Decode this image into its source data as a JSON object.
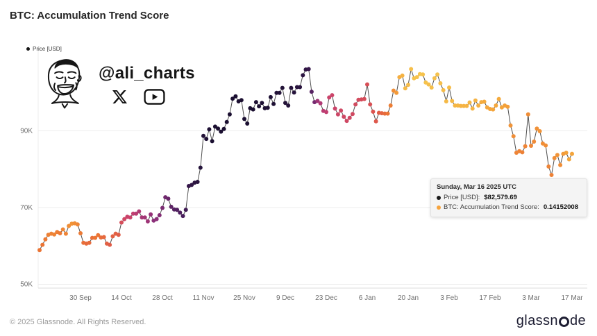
{
  "page": {
    "title": "BTC: Accumulation Trend Score",
    "footer_left": "© 2025 Glassnode. All Rights Reserved.",
    "brand": "glassnode",
    "brand_prefix": "glassn",
    "brand_suffix": "de"
  },
  "legend": {
    "label": "Price [USD]"
  },
  "watermark": {
    "handle": "@ali_charts",
    "icons": [
      "face-sketch-icon",
      "x-logo-icon",
      "youtube-icon"
    ]
  },
  "tooltip": {
    "title": "Sunday, Mar 16 2025 UTC",
    "rows": [
      {
        "label": "Price [USD]:",
        "value": "$82,579.69",
        "dot_color": "#1a1a1a"
      },
      {
        "label": "BTC: Accumulation Trend Score:",
        "value": "0.14152008",
        "dot_color": "#f6a33c"
      }
    ]
  },
  "chart_data": {
    "type": "scatter",
    "title": "BTC: Accumulation Trend Score",
    "ylabel": "Price [USD]",
    "xlabel": "",
    "grid": true,
    "legend_position": "top-left",
    "ylim": [
      49000,
      110000
    ],
    "y_ticks": [
      {
        "value": 50000,
        "label": "50K"
      },
      {
        "value": 70000,
        "label": "70K"
      },
      {
        "value": 90000,
        "label": "90K"
      }
    ],
    "x_ticks": [
      "30 Sep",
      "14 Oct",
      "28 Oct",
      "11 Nov",
      "25 Nov",
      "9 Dec",
      "23 Dec",
      "6 Jan",
      "20 Jan",
      "3 Feb",
      "17 Feb",
      "3 Mar",
      "17 Mar"
    ],
    "x_tick_day_indices": [
      14,
      28,
      42,
      56,
      70,
      84,
      98,
      112,
      126,
      140,
      154,
      168,
      182
    ],
    "color_scale": {
      "meaning": "dot color = accumulation trend score; 0 = yellow (distribution), 1 = dark navy (accumulation)",
      "stops": [
        [
          0.0,
          [
            247,
            209,
            84
          ]
        ],
        [
          0.15,
          [
            244,
            164,
            58
          ]
        ],
        [
          0.3,
          [
            235,
            116,
            52
          ]
        ],
        [
          0.45,
          [
            219,
            82,
            82
          ]
        ],
        [
          0.57,
          [
            198,
            64,
            112
          ]
        ],
        [
          0.7,
          [
            140,
            48,
            122
          ]
        ],
        [
          0.85,
          [
            72,
            30,
            92
          ]
        ],
        [
          1.0,
          [
            20,
            13,
            42
          ]
        ]
      ]
    },
    "line_color": "#4d4d4d",
    "point_format": [
      "date",
      "price_usd",
      "accumulation_trend_score"
    ],
    "points": [
      [
        "2024-09-16",
        58900,
        0.3
      ],
      [
        "2024-09-17",
        60300,
        0.3
      ],
      [
        "2024-09-18",
        61700,
        0.28
      ],
      [
        "2024-09-19",
        62900,
        0.26
      ],
      [
        "2024-09-20",
        63200,
        0.25
      ],
      [
        "2024-09-21",
        63000,
        0.25
      ],
      [
        "2024-09-22",
        63600,
        0.27
      ],
      [
        "2024-09-23",
        63300,
        0.28
      ],
      [
        "2024-09-24",
        64300,
        0.24
      ],
      [
        "2024-09-25",
        63200,
        0.25
      ],
      [
        "2024-09-26",
        65200,
        0.22
      ],
      [
        "2024-09-27",
        65800,
        0.2
      ],
      [
        "2024-09-28",
        65900,
        0.22
      ],
      [
        "2024-09-29",
        65600,
        0.24
      ],
      [
        "2024-09-30",
        63300,
        0.28
      ],
      [
        "2024-10-01",
        60800,
        0.32
      ],
      [
        "2024-10-02",
        60600,
        0.34
      ],
      [
        "2024-10-03",
        60800,
        0.34
      ],
      [
        "2024-10-04",
        62100,
        0.32
      ],
      [
        "2024-10-05",
        62100,
        0.3
      ],
      [
        "2024-10-06",
        62800,
        0.3
      ],
      [
        "2024-10-07",
        62200,
        0.33
      ],
      [
        "2024-10-08",
        62300,
        0.35
      ],
      [
        "2024-10-09",
        60600,
        0.38
      ],
      [
        "2024-10-10",
        60300,
        0.4
      ],
      [
        "2024-10-11",
        62500,
        0.38
      ],
      [
        "2024-10-12",
        63200,
        0.38
      ],
      [
        "2024-10-13",
        62900,
        0.4
      ],
      [
        "2024-10-14",
        66100,
        0.48
      ],
      [
        "2024-10-15",
        67000,
        0.52
      ],
      [
        "2024-10-16",
        67600,
        0.55
      ],
      [
        "2024-10-17",
        67400,
        0.55
      ],
      [
        "2024-10-18",
        68400,
        0.58
      ],
      [
        "2024-10-19",
        68400,
        0.6
      ],
      [
        "2024-10-20",
        69000,
        0.62
      ],
      [
        "2024-10-21",
        67400,
        0.64
      ],
      [
        "2024-10-22",
        67400,
        0.65
      ],
      [
        "2024-10-23",
        66400,
        0.66
      ],
      [
        "2024-10-24",
        68200,
        0.68
      ],
      [
        "2024-10-25",
        66600,
        0.7
      ],
      [
        "2024-10-26",
        67000,
        0.7
      ],
      [
        "2024-10-27",
        68000,
        0.72
      ],
      [
        "2024-10-28",
        69900,
        0.74
      ],
      [
        "2024-10-29",
        72700,
        0.76
      ],
      [
        "2024-10-30",
        72300,
        0.78
      ],
      [
        "2024-10-31",
        70200,
        0.8
      ],
      [
        "2024-11-01",
        69500,
        0.82
      ],
      [
        "2024-11-02",
        69400,
        0.83
      ],
      [
        "2024-11-03",
        68700,
        0.84
      ],
      [
        "2024-11-04",
        67800,
        0.85
      ],
      [
        "2024-11-05",
        69400,
        0.87
      ],
      [
        "2024-11-06",
        75600,
        0.9
      ],
      [
        "2024-11-07",
        75900,
        0.92
      ],
      [
        "2024-11-08",
        76500,
        0.93
      ],
      [
        "2024-11-09",
        76700,
        0.94
      ],
      [
        "2024-11-10",
        80400,
        0.95
      ],
      [
        "2024-11-11",
        88700,
        0.96
      ],
      [
        "2024-11-12",
        87900,
        0.97
      ],
      [
        "2024-11-13",
        90400,
        0.97
      ],
      [
        "2024-11-14",
        87300,
        0.98
      ],
      [
        "2024-11-15",
        91100,
        0.98
      ],
      [
        "2024-11-16",
        90600,
        0.98
      ],
      [
        "2024-11-17",
        89800,
        0.98
      ],
      [
        "2024-11-18",
        90500,
        0.98
      ],
      [
        "2024-11-19",
        92300,
        0.98
      ],
      [
        "2024-11-20",
        94300,
        0.98
      ],
      [
        "2024-11-21",
        98400,
        0.98
      ],
      [
        "2024-11-22",
        99000,
        0.98
      ],
      [
        "2024-11-23",
        97700,
        0.98
      ],
      [
        "2024-11-24",
        98000,
        0.98
      ],
      [
        "2024-11-25",
        93100,
        0.98
      ],
      [
        "2024-11-26",
        91900,
        0.98
      ],
      [
        "2024-11-27",
        95900,
        0.98
      ],
      [
        "2024-11-28",
        95600,
        0.98
      ],
      [
        "2024-11-29",
        97500,
        0.97
      ],
      [
        "2024-11-30",
        96400,
        0.97
      ],
      [
        "2024-12-01",
        97300,
        0.97
      ],
      [
        "2024-12-02",
        95900,
        0.97
      ],
      [
        "2024-12-03",
        96000,
        0.97
      ],
      [
        "2024-12-04",
        98800,
        0.97
      ],
      [
        "2024-12-05",
        97000,
        0.97
      ],
      [
        "2024-12-06",
        99900,
        0.96
      ],
      [
        "2024-12-07",
        99900,
        0.96
      ],
      [
        "2024-12-08",
        101200,
        0.96
      ],
      [
        "2024-12-09",
        97300,
        0.96
      ],
      [
        "2024-12-10",
        96600,
        0.95
      ],
      [
        "2024-12-11",
        101200,
        0.95
      ],
      [
        "2024-12-12",
        100000,
        0.95
      ],
      [
        "2024-12-13",
        101400,
        0.94
      ],
      [
        "2024-12-14",
        101400,
        0.94
      ],
      [
        "2024-12-15",
        104500,
        0.93
      ],
      [
        "2024-12-16",
        106000,
        0.92
      ],
      [
        "2024-12-17",
        106100,
        0.9
      ],
      [
        "2024-12-18",
        100200,
        0.82
      ],
      [
        "2024-12-19",
        97500,
        0.75
      ],
      [
        "2024-12-20",
        97800,
        0.66
      ],
      [
        "2024-12-21",
        97200,
        0.62
      ],
      [
        "2024-12-22",
        95200,
        0.6
      ],
      [
        "2024-12-23",
        94900,
        0.58
      ],
      [
        "2024-12-24",
        98700,
        0.55
      ],
      [
        "2024-12-25",
        99300,
        0.54
      ],
      [
        "2024-12-26",
        95800,
        0.54
      ],
      [
        "2024-12-27",
        94300,
        0.53
      ],
      [
        "2024-12-28",
        95300,
        0.52
      ],
      [
        "2024-12-29",
        93700,
        0.52
      ],
      [
        "2024-12-30",
        92600,
        0.52
      ],
      [
        "2024-12-31",
        93400,
        0.52
      ],
      [
        "2025-01-01",
        94400,
        0.51
      ],
      [
        "2025-01-02",
        96900,
        0.5
      ],
      [
        "2025-01-03",
        98100,
        0.5
      ],
      [
        "2025-01-04",
        98200,
        0.49
      ],
      [
        "2025-01-05",
        98300,
        0.48
      ],
      [
        "2025-01-06",
        102100,
        0.47
      ],
      [
        "2025-01-07",
        96900,
        0.46
      ],
      [
        "2025-01-08",
        95000,
        0.44
      ],
      [
        "2025-01-09",
        92500,
        0.42
      ],
      [
        "2025-01-10",
        94700,
        0.4
      ],
      [
        "2025-01-11",
        94600,
        0.37
      ],
      [
        "2025-01-12",
        94500,
        0.34
      ],
      [
        "2025-01-13",
        94500,
        0.3
      ],
      [
        "2025-01-14",
        96600,
        0.27
      ],
      [
        "2025-01-15",
        100500,
        0.22
      ],
      [
        "2025-01-16",
        99900,
        0.18
      ],
      [
        "2025-01-17",
        104000,
        0.12
      ],
      [
        "2025-01-18",
        104400,
        0.1
      ],
      [
        "2025-01-19",
        101100,
        0.08
      ],
      [
        "2025-01-20",
        102000,
        0.07
      ],
      [
        "2025-01-21",
        106100,
        0.06
      ],
      [
        "2025-01-22",
        103700,
        0.05
      ],
      [
        "2025-01-23",
        104000,
        0.05
      ],
      [
        "2025-01-24",
        104800,
        0.04
      ],
      [
        "2025-01-25",
        104700,
        0.05
      ],
      [
        "2025-01-26",
        102600,
        0.05
      ],
      [
        "2025-01-27",
        102100,
        0.06
      ],
      [
        "2025-01-28",
        101300,
        0.06
      ],
      [
        "2025-01-29",
        103700,
        0.06
      ],
      [
        "2025-01-30",
        104700,
        0.05
      ],
      [
        "2025-01-31",
        102400,
        0.06
      ],
      [
        "2025-02-01",
        100600,
        0.07
      ],
      [
        "2025-02-02",
        97700,
        0.08
      ],
      [
        "2025-02-03",
        101300,
        0.07
      ],
      [
        "2025-02-04",
        97800,
        0.08
      ],
      [
        "2025-02-05",
        96600,
        0.09
      ],
      [
        "2025-02-06",
        96600,
        0.09
      ],
      [
        "2025-02-07",
        96500,
        0.1
      ],
      [
        "2025-02-08",
        96500,
        0.1
      ],
      [
        "2025-02-09",
        96500,
        0.1
      ],
      [
        "2025-02-10",
        97400,
        0.09
      ],
      [
        "2025-02-11",
        95800,
        0.1
      ],
      [
        "2025-02-12",
        97900,
        0.1
      ],
      [
        "2025-02-13",
        96600,
        0.11
      ],
      [
        "2025-02-14",
        97500,
        0.12
      ],
      [
        "2025-02-15",
        97600,
        0.13
      ],
      [
        "2025-02-16",
        96100,
        0.14
      ],
      [
        "2025-02-17",
        95700,
        0.15
      ],
      [
        "2025-02-18",
        95600,
        0.15
      ],
      [
        "2025-02-19",
        96600,
        0.14
      ],
      [
        "2025-02-20",
        98300,
        0.13
      ],
      [
        "2025-02-21",
        96100,
        0.15
      ],
      [
        "2025-02-22",
        96600,
        0.16
      ],
      [
        "2025-02-23",
        96300,
        0.17
      ],
      [
        "2025-02-24",
        91400,
        0.2
      ],
      [
        "2025-02-25",
        88600,
        0.22
      ],
      [
        "2025-02-26",
        84300,
        0.25
      ],
      [
        "2025-02-27",
        84700,
        0.25
      ],
      [
        "2025-02-28",
        84400,
        0.26
      ],
      [
        "2025-03-01",
        86000,
        0.25
      ],
      [
        "2025-03-02",
        94300,
        0.22
      ],
      [
        "2025-03-03",
        86100,
        0.24
      ],
      [
        "2025-03-04",
        87200,
        0.23
      ],
      [
        "2025-03-05",
        90600,
        0.21
      ],
      [
        "2025-03-06",
        89900,
        0.2
      ],
      [
        "2025-03-07",
        86700,
        0.22
      ],
      [
        "2025-03-08",
        86200,
        0.22
      ],
      [
        "2025-03-09",
        80700,
        0.25
      ],
      [
        "2025-03-10",
        78500,
        0.26
      ],
      [
        "2025-03-11",
        82900,
        0.22
      ],
      [
        "2025-03-12",
        83700,
        0.2
      ],
      [
        "2025-03-13",
        81100,
        0.22
      ],
      [
        "2025-03-14",
        84000,
        0.18
      ],
      [
        "2025-03-15",
        84300,
        0.16
      ],
      [
        "2025-03-16",
        82579.69,
        0.14152008
      ],
      [
        "2025-03-17",
        84000,
        0.15
      ]
    ]
  }
}
